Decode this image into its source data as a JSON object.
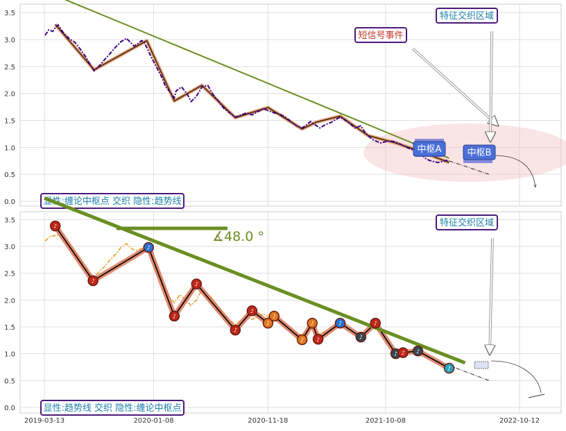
{
  "chart_data": [
    {
      "type": "line",
      "panel": "upper",
      "ylim": [
        -0.1,
        3.65
      ],
      "yticks": [
        "0.0",
        "0.5",
        "1.0",
        "1.5",
        "2.0",
        "2.5",
        "3.0",
        "3.5"
      ],
      "grid": true,
      "legend_box": "显性:缠论中枢点 交织 隐性:趋势线",
      "annotations": {
        "feature_zone": "特征交织区域",
        "short_signal": "短信号事件",
        "pivot_a": "中枢A",
        "pivot_b": "中枢B"
      },
      "price_series": [
        [
          "2019-03-15",
          3.08
        ],
        [
          "2019-03-25",
          3.18
        ],
        [
          "2019-04-05",
          3.15
        ],
        [
          "2019-04-12",
          3.22
        ],
        [
          "2019-04-20",
          3.27
        ],
        [
          "2019-05-05",
          3.12
        ],
        [
          "2019-05-20",
          3.02
        ],
        [
          "2019-06-05",
          2.95
        ],
        [
          "2019-06-20",
          2.82
        ],
        [
          "2019-07-05",
          2.68
        ],
        [
          "2019-07-20",
          2.5
        ],
        [
          "2019-07-28",
          2.42
        ],
        [
          "2019-08-10",
          2.5
        ],
        [
          "2019-08-25",
          2.62
        ],
        [
          "2019-09-10",
          2.74
        ],
        [
          "2019-09-25",
          2.86
        ],
        [
          "2019-10-10",
          2.96
        ],
        [
          "2019-10-25",
          3.02
        ],
        [
          "2019-11-05",
          2.95
        ],
        [
          "2019-11-15",
          2.88
        ],
        [
          "2019-11-25",
          2.92
        ],
        [
          "2019-12-05",
          2.98
        ],
        [
          "2019-12-12",
          2.96
        ],
        [
          "2019-12-20",
          2.85
        ],
        [
          "2020-01-01",
          2.68
        ],
        [
          "2020-01-15",
          2.5
        ],
        [
          "2020-02-01",
          2.28
        ],
        [
          "2020-02-10",
          2.12
        ],
        [
          "2020-02-20",
          2.05
        ],
        [
          "2020-03-05",
          1.92
        ],
        [
          "2020-03-10",
          2.05
        ],
        [
          "2020-03-25",
          2.12
        ],
        [
          "2020-04-10",
          1.98
        ],
        [
          "2020-04-20",
          1.85
        ],
        [
          "2020-05-05",
          1.95
        ],
        [
          "2020-05-20",
          2.12
        ],
        [
          "2020-06-05",
          2.15
        ],
        [
          "2020-06-20",
          1.98
        ],
        [
          "2020-07-05",
          1.85
        ],
        [
          "2020-07-20",
          1.72
        ],
        [
          "2020-08-05",
          1.64
        ],
        [
          "2020-08-20",
          1.56
        ],
        [
          "2020-09-05",
          1.6
        ],
        [
          "2020-09-20",
          1.64
        ],
        [
          "2020-10-05",
          1.6
        ],
        [
          "2020-10-20",
          1.66
        ],
        [
          "2020-11-05",
          1.72
        ],
        [
          "2020-11-18",
          1.68
        ],
        [
          "2020-12-05",
          1.64
        ],
        [
          "2020-12-20",
          1.62
        ],
        [
          "2021-01-05",
          1.56
        ],
        [
          "2021-01-20",
          1.48
        ],
        [
          "2021-02-05",
          1.4
        ],
        [
          "2021-02-20",
          1.36
        ],
        [
          "2021-03-05",
          1.42
        ],
        [
          "2021-03-15",
          1.48
        ],
        [
          "2021-04-01",
          1.4
        ],
        [
          "2021-04-10",
          1.36
        ],
        [
          "2021-04-25",
          1.42
        ],
        [
          "2021-05-10",
          1.46
        ],
        [
          "2021-05-25",
          1.52
        ],
        [
          "2021-06-05",
          1.56
        ],
        [
          "2021-06-20",
          1.5
        ],
        [
          "2021-07-05",
          1.42
        ],
        [
          "2021-07-15",
          1.36
        ],
        [
          "2021-08-01",
          1.4
        ],
        [
          "2021-08-10",
          1.3
        ],
        [
          "2021-08-20",
          1.22
        ],
        [
          "2021-09-01",
          1.15
        ],
        [
          "2021-09-10",
          1.12
        ],
        [
          "2021-09-25",
          1.08
        ],
        [
          "2021-10-05",
          1.1
        ],
        [
          "2021-10-20",
          1.12
        ],
        [
          "2021-11-05",
          1.1
        ],
        [
          "2021-11-20",
          1.05
        ],
        [
          "2021-12-05",
          1.0
        ],
        [
          "2021-12-20",
          0.96
        ],
        [
          "2022-01-10",
          0.9
        ],
        [
          "2022-01-25",
          0.8
        ],
        [
          "2022-02-05",
          0.76
        ],
        [
          "2022-02-15",
          0.74
        ],
        [
          "2022-03-01",
          0.72
        ],
        [
          "2022-03-15",
          0.74
        ],
        [
          "2022-03-25",
          0.76
        ],
        [
          "2022-04-01",
          0.74
        ]
      ],
      "zigzag": [
        [
          "2019-04-12",
          3.28
        ],
        [
          "2019-07-28",
          2.44
        ],
        [
          "2019-12-20",
          2.98
        ],
        [
          "2020-03-05",
          1.86
        ],
        [
          "2020-05-20",
          2.15
        ],
        [
          "2020-08-20",
          1.55
        ],
        [
          "2020-11-18",
          1.74
        ],
        [
          "2021-02-20",
          1.34
        ],
        [
          "2021-04-01",
          1.47
        ],
        [
          "2021-06-05",
          1.58
        ],
        [
          "2021-08-20",
          1.22
        ],
        [
          "2021-11-05",
          1.08
        ],
        [
          "2021-12-20",
          0.98
        ],
        [
          "2022-04-01",
          0.72
        ]
      ],
      "trend_line": [
        [
          "2019-03-13",
          3.9
        ],
        [
          "2022-04-01",
          0.8
        ]
      ],
      "projection": [
        [
          "2022-04-01",
          0.75
        ],
        [
          "2022-07-20",
          0.5
        ]
      ]
    },
    {
      "type": "line",
      "panel": "lower",
      "ylim": [
        -0.1,
        3.65
      ],
      "yticks": [
        "0.0",
        "0.5",
        "1.0",
        "1.5",
        "2.0",
        "2.5",
        "3.0",
        "3.5"
      ],
      "xticks": [
        "2019-03-13",
        "2020-01-08",
        "2020-11-18",
        "2021-10-08",
        "2022-10-12"
      ],
      "grid": true,
      "legend_box": "显性:趋势线 交织 隐性:缠论中枢点",
      "angle_label": "∡48.0 °",
      "annotations": {
        "feature_zone": "特征交织区域"
      },
      "price_series": [
        [
          "2019-03-15",
          3.1
        ],
        [
          "2019-03-28",
          3.18
        ],
        [
          "2019-04-10",
          3.2
        ],
        [
          "2019-04-22",
          3.22
        ],
        [
          "2019-05-05",
          3.1
        ],
        [
          "2019-05-20",
          3.0
        ],
        [
          "2019-06-05",
          2.9
        ],
        [
          "2019-06-20",
          2.75
        ],
        [
          "2019-07-05",
          2.6
        ],
        [
          "2019-07-25",
          2.42
        ],
        [
          "2019-08-10",
          2.52
        ],
        [
          "2019-08-25",
          2.62
        ],
        [
          "2019-09-10",
          2.75
        ],
        [
          "2019-09-25",
          2.85
        ],
        [
          "2019-10-10",
          2.98
        ],
        [
          "2019-10-25",
          3.05
        ],
        [
          "2019-11-10",
          2.95
        ],
        [
          "2019-11-25",
          2.92
        ],
        [
          "2019-12-10",
          2.98
        ],
        [
          "2019-12-20",
          2.95
        ],
        [
          "2020-01-05",
          2.78
        ],
        [
          "2020-01-20",
          2.55
        ],
        [
          "2020-02-05",
          2.3
        ],
        [
          "2020-02-20",
          2.05
        ],
        [
          "2020-03-05",
          1.95
        ],
        [
          "2020-03-20",
          2.1
        ],
        [
          "2020-04-05",
          2.0
        ],
        [
          "2020-04-20",
          1.9
        ],
        [
          "2020-05-05",
          2.0
        ],
        [
          "2020-05-20",
          2.2
        ],
        [
          "2020-06-05",
          2.1
        ],
        [
          "2020-06-20",
          2.02
        ],
        [
          "2020-07-05",
          1.85
        ],
        [
          "2020-07-20",
          1.72
        ],
        [
          "2020-08-05",
          1.62
        ],
        [
          "2020-08-20",
          1.55
        ],
        [
          "2020-09-05",
          1.62
        ],
        [
          "2020-09-20",
          1.7
        ],
        [
          "2020-10-05",
          1.64
        ],
        [
          "2020-10-20",
          1.7
        ],
        [
          "2020-11-05",
          1.74
        ],
        [
          "2020-11-20",
          1.68
        ],
        [
          "2020-12-05",
          1.64
        ],
        [
          "2020-12-20",
          1.6
        ],
        [
          "2021-01-05",
          1.52
        ],
        [
          "2021-01-20",
          1.42
        ],
        [
          "2021-02-05",
          1.38
        ],
        [
          "2021-02-20",
          1.34
        ],
        [
          "2021-03-05",
          1.42
        ],
        [
          "2021-03-20",
          1.48
        ],
        [
          "2021-04-05",
          1.38
        ],
        [
          "2021-04-20",
          1.4
        ],
        [
          "2021-05-05",
          1.45
        ],
        [
          "2021-05-20",
          1.52
        ],
        [
          "2021-06-05",
          1.56
        ]
      ],
      "zigzag": [
        [
          "2019-04-12",
          3.38
        ],
        [
          "2019-07-25",
          2.36
        ],
        [
          "2019-12-25",
          2.98
        ],
        [
          "2020-03-05",
          1.7
        ],
        [
          "2020-05-05",
          2.3
        ],
        [
          "2020-08-20",
          1.44
        ],
        [
          "2020-10-05",
          1.8
        ],
        [
          "2020-11-18",
          1.57
        ],
        [
          "2020-12-05",
          1.7
        ],
        [
          "2021-02-20",
          1.26
        ],
        [
          "2021-03-20",
          1.57
        ],
        [
          "2021-04-05",
          1.27
        ],
        [
          "2021-06-05",
          1.57
        ],
        [
          "2021-08-01",
          1.31
        ],
        [
          "2021-09-10",
          1.57
        ],
        [
          "2021-11-05",
          1.0
        ],
        [
          "2021-11-25",
          1.02
        ],
        [
          "2022-01-05",
          1.05
        ],
        [
          "2022-04-01",
          0.73
        ]
      ],
      "trend_line": [
        [
          "2019-03-13",
          3.9
        ],
        [
          "2022-05-15",
          0.83
        ]
      ],
      "projection": [
        [
          "2022-04-01",
          0.78
        ],
        [
          "2022-07-20",
          0.5
        ]
      ]
    }
  ]
}
